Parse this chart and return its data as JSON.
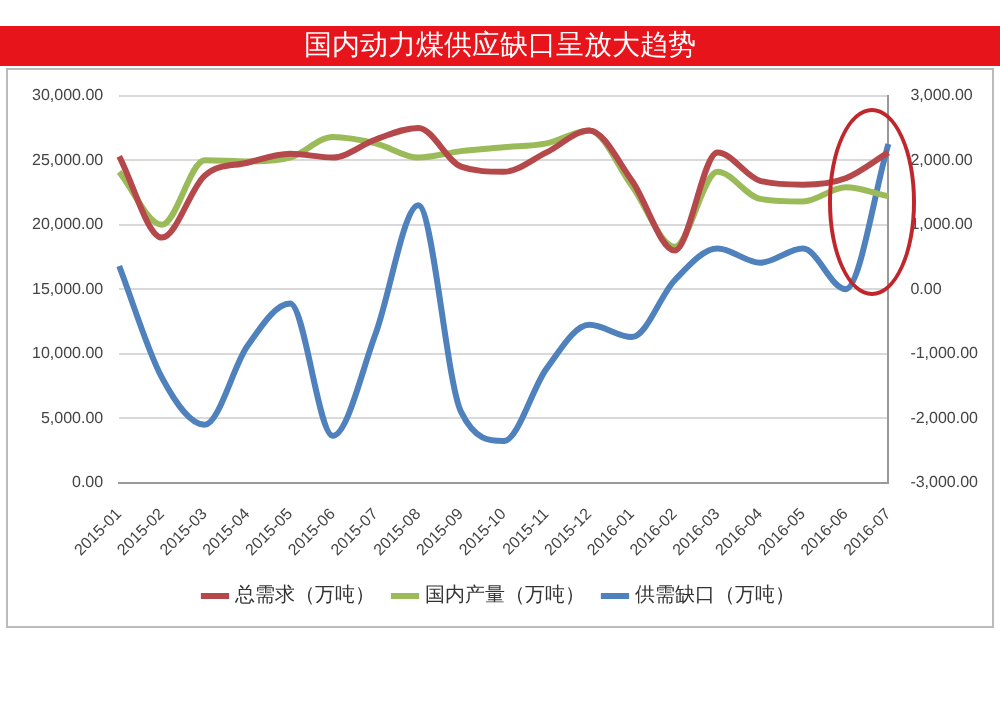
{
  "chart_data": {
    "type": "line",
    "title": "国内动力煤供应缺口呈放大趋势",
    "categories": [
      "2015-01",
      "2015-02",
      "2015-03",
      "2015-04",
      "2015-05",
      "2015-06",
      "2015-07",
      "2015-08",
      "2015-09",
      "2015-10",
      "2015-11",
      "2015-12",
      "2016-01",
      "2016-02",
      "2016-03",
      "2016-04",
      "2016-05",
      "2016-06",
      "2016-07"
    ],
    "series": [
      {
        "name": "总需求（万吨）",
        "color": "#b5484a",
        "values": [
          25300,
          19000,
          23800,
          24800,
          25500,
          25200,
          26600,
          27500,
          24500,
          24100,
          25600,
          27300,
          23400,
          18000,
          25600,
          23400,
          23100,
          23600,
          25600
        ]
      },
      {
        "name": "国内产量（万吨）",
        "color": "#9bbb59",
        "values": [
          24100,
          20000,
          25000,
          24900,
          25200,
          26800,
          26300,
          25200,
          25700,
          26000,
          26300,
          27300,
          23000,
          18300,
          24100,
          22000,
          21800,
          22900,
          22200
        ]
      },
      {
        "name": "供需缺口（万吨）",
        "color": "#4f81bd",
        "axis": "y2",
        "values": [
          360,
          -1370,
          -2100,
          -880,
          -220,
          -2270,
          -690,
          1300,
          -1900,
          -2350,
          -1230,
          -550,
          -740,
          140,
          630,
          410,
          630,
          0,
          2250
        ]
      }
    ],
    "ylim": [
      0,
      30000
    ],
    "yticks": [
      {
        "value": 0,
        "label": "0.00"
      },
      {
        "value": 5000,
        "label": "5,000.00"
      },
      {
        "value": 10000,
        "label": "10,000.00"
      },
      {
        "value": 15000,
        "label": "15,000.00"
      },
      {
        "value": 20000,
        "label": "20,000.00"
      },
      {
        "value": 25000,
        "label": "25,000.00"
      },
      {
        "value": 30000,
        "label": "30,000.00"
      }
    ],
    "y2lim": [
      -3000,
      3000
    ],
    "y2ticks": [
      {
        "value": -3000,
        "label": "-3,000.00"
      },
      {
        "value": -2000,
        "label": "-2,000.00"
      },
      {
        "value": -1000,
        "label": "-1,000.00"
      },
      {
        "value": 0,
        "label": "0.00"
      },
      {
        "value": 1000,
        "label": "1,000.00"
      },
      {
        "value": 2000,
        "label": "2,000.00"
      },
      {
        "value": 3000,
        "label": "3,000.00"
      }
    ],
    "grid": "y",
    "legend": "bottom",
    "marker": "none",
    "line_style": "solid"
  }
}
